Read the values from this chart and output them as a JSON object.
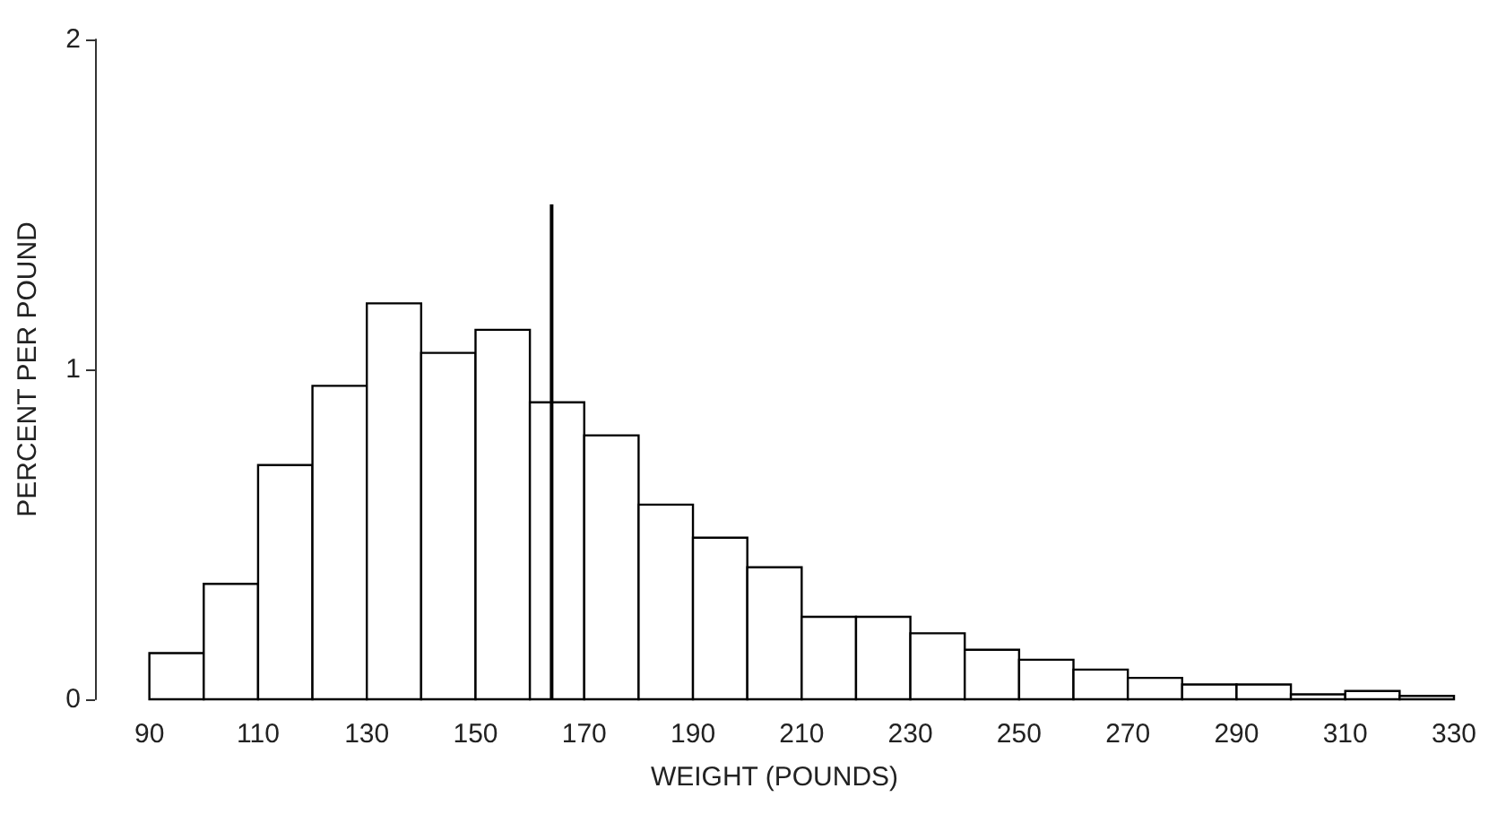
{
  "chart_data": {
    "type": "histogram",
    "xlabel": "WEIGHT (POUNDS)",
    "ylabel": "PERCENT PER POUND",
    "bins": [
      90,
      100,
      110,
      120,
      130,
      140,
      150,
      160,
      170,
      180,
      190,
      200,
      210,
      220,
      230,
      240,
      250,
      260,
      270,
      280,
      290,
      300,
      310,
      320,
      330
    ],
    "values": [
      0.14,
      0.35,
      0.71,
      0.95,
      1.2,
      1.05,
      1.12,
      0.9,
      0.8,
      0.59,
      0.49,
      0.4,
      0.25,
      0.25,
      0.2,
      0.15,
      0.12,
      0.09,
      0.065,
      0.045,
      0.045,
      0.015,
      0.025,
      0.01
    ],
    "color": "#ffffff",
    "series": [
      {
        "type": "line",
        "x": [
          164,
          164
        ],
        "values": [
          0,
          1.5
        ],
        "color": "#000000"
      }
    ],
    "marker": "none",
    "grid": false,
    "xlim": [
      80,
      330
    ],
    "xticks": [
      90,
      110,
      130,
      150,
      170,
      190,
      210,
      230,
      250,
      270,
      290,
      310,
      330
    ],
    "ylim": [
      0,
      2
    ],
    "yticks": [
      0,
      1,
      2
    ]
  }
}
